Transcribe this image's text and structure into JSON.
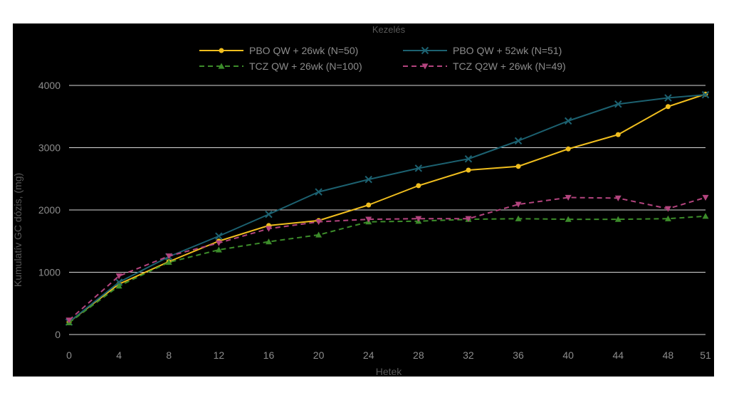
{
  "chart_data": {
    "type": "line",
    "legend_title": "Kezelés",
    "legend_position": "top",
    "xlabel": "Hetek",
    "ylabel": "Kumulatív GC dózis, (mg)",
    "x": [
      0,
      4,
      8,
      12,
      16,
      20,
      24,
      28,
      32,
      36,
      40,
      44,
      48,
      51
    ],
    "x_tick_labels": [
      "0",
      "4",
      "8",
      "12",
      "16",
      "20",
      "24",
      "28",
      "32",
      "36",
      "40",
      "44",
      "48",
      "51"
    ],
    "ylim": [
      0,
      4000
    ],
    "y_ticks": [
      0,
      1000,
      2000,
      3000,
      4000
    ],
    "y_tick_labels": [
      "0",
      "1000",
      "2000",
      "3000",
      "4000"
    ],
    "grid": true,
    "series": [
      {
        "name": "PBO QW + 26wk (N=50)",
        "color": "#f0be1e",
        "dash": "solid",
        "marker": "circle",
        "values": [
          200,
          810,
          1170,
          1500,
          1750,
          1830,
          2080,
          2390,
          2640,
          2700,
          2980,
          3210,
          3660,
          3860
        ]
      },
      {
        "name": "PBO QW + 52wk (N=51)",
        "color": "#1c6170",
        "dash": "solid",
        "marker": "x",
        "values": [
          200,
          840,
          1250,
          1580,
          1930,
          2290,
          2490,
          2670,
          2820,
          3110,
          3430,
          3700,
          3800,
          3850
        ]
      },
      {
        "name": "TCZ QW + 26wk (N=100)",
        "color": "#3c8c2a",
        "dash": "dashed",
        "marker": "triangle-up",
        "values": [
          190,
          780,
          1160,
          1360,
          1490,
          1600,
          1810,
          1820,
          1850,
          1860,
          1850,
          1850,
          1860,
          1900
        ]
      },
      {
        "name": "TCZ Q2W + 26wk (N=49)",
        "color": "#b3447e",
        "dash": "dashed",
        "marker": "triangle-down",
        "values": [
          230,
          940,
          1260,
          1470,
          1700,
          1810,
          1850,
          1860,
          1860,
          2090,
          2200,
          2190,
          2020,
          2200
        ]
      }
    ]
  }
}
